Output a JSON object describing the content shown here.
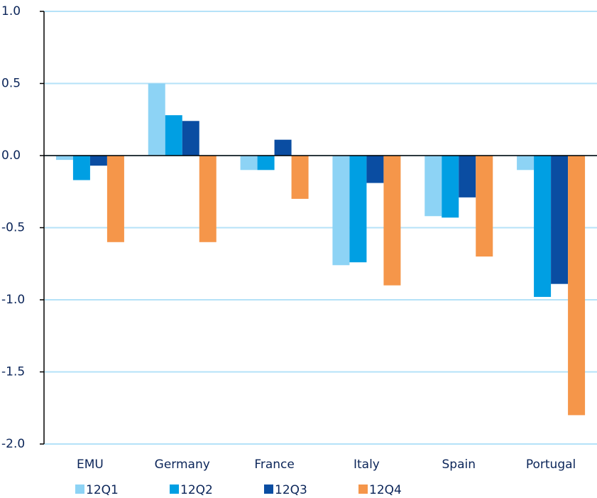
{
  "chart_data": {
    "type": "bar",
    "categories": [
      "EMU",
      "Germany",
      "France",
      "Italy",
      "Spain",
      "Portugal"
    ],
    "series": [
      {
        "name": "12Q1",
        "color": "#8dd3f5",
        "values": [
          -0.03,
          0.5,
          -0.1,
          -0.76,
          -0.42,
          -0.1
        ]
      },
      {
        "name": "12Q2",
        "color": "#009fe3",
        "values": [
          -0.17,
          0.28,
          -0.1,
          -0.74,
          -0.43,
          -0.98
        ]
      },
      {
        "name": "12Q3",
        "color": "#0a4da2",
        "values": [
          -0.07,
          0.24,
          0.11,
          -0.19,
          -0.29,
          -0.89
        ]
      },
      {
        "name": "12Q4",
        "color": "#f5964a",
        "values": [
          -0.6,
          -0.6,
          -0.3,
          -0.9,
          -0.7,
          -1.8
        ]
      }
    ],
    "ylim": [
      -2,
      1
    ],
    "yticks": [
      {
        "value": 1,
        "label": "1.0"
      },
      0.5,
      {
        "value": 0,
        "label": "0.0"
      },
      -0.5,
      {
        "value": -1,
        "label": "-1.0"
      },
      -1.5,
      {
        "value": -2,
        "label": "-2.0"
      }
    ],
    "grid": true,
    "legend": "bottom"
  }
}
